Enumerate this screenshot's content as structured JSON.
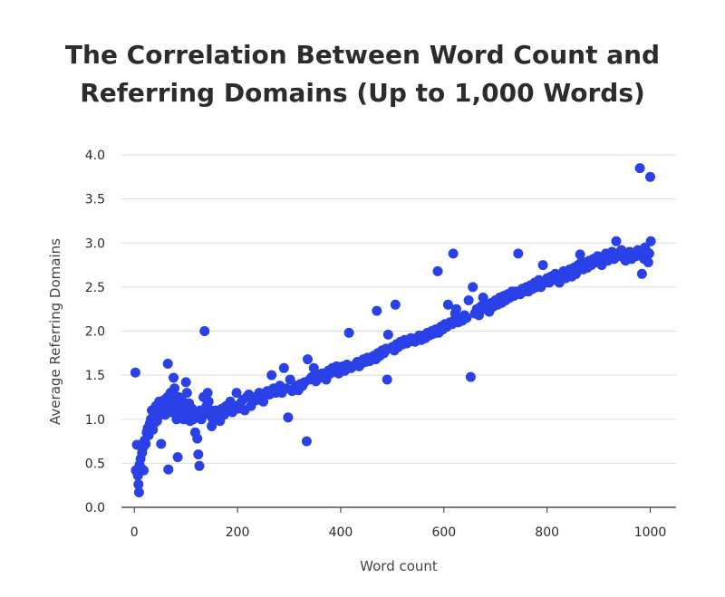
{
  "chart_data": {
    "type": "scatter",
    "title_lines": [
      "The Correlation Between Word Count and",
      "Referring Domains (Up to 1,000 Words)"
    ],
    "xlabel": "Word count",
    "ylabel": "Average Referring Domains",
    "xlim": [
      -25,
      1050
    ],
    "ylim": [
      0,
      4
    ],
    "x_ticks": [
      "0",
      "200",
      "400",
      "600",
      "800",
      "1000"
    ],
    "y_ticks": [
      "0.0",
      "0.5",
      "1.0",
      "1.5",
      "2.0",
      "2.5",
      "3.0",
      "3.5",
      "4.0"
    ],
    "grid": "horizontal",
    "point_color": "#2a41e8",
    "points": [
      [
        2,
        1.53
      ],
      [
        3,
        0.42
      ],
      [
        5,
        0.71
      ],
      [
        7,
        0.36
      ],
      [
        8,
        0.26
      ],
      [
        9,
        0.17
      ],
      [
        10,
        0.48
      ],
      [
        12,
        0.55
      ],
      [
        14,
        0.44
      ],
      [
        15,
        0.62
      ],
      [
        17,
        0.68
      ],
      [
        18,
        0.42
      ],
      [
        20,
        0.76
      ],
      [
        22,
        0.72
      ],
      [
        24,
        0.85
      ],
      [
        26,
        0.9
      ],
      [
        28,
        0.82
      ],
      [
        30,
        0.95
      ],
      [
        32,
        1.0
      ],
      [
        34,
        1.1
      ],
      [
        36,
        0.88
      ],
      [
        38,
        0.95
      ],
      [
        40,
        1.02
      ],
      [
        42,
        1.15
      ],
      [
        44,
        0.98
      ],
      [
        46,
        1.08
      ],
      [
        48,
        1.2
      ],
      [
        50,
        1.05
      ],
      [
        52,
        0.72
      ],
      [
        54,
        1.1
      ],
      [
        56,
        1.18
      ],
      [
        58,
        1.22
      ],
      [
        60,
        1.05
      ],
      [
        62,
        1.12
      ],
      [
        64,
        1.25
      ],
      [
        65,
        1.63
      ],
      [
        66,
        0.43
      ],
      [
        68,
        1.15
      ],
      [
        70,
        1.3
      ],
      [
        72,
        1.08
      ],
      [
        74,
        1.2
      ],
      [
        76,
        1.47
      ],
      [
        78,
        1.35
      ],
      [
        80,
        1.1
      ],
      [
        82,
        1.0
      ],
      [
        84,
        0.57
      ],
      [
        86,
        1.25
      ],
      [
        88,
        1.15
      ],
      [
        90,
        1.05
      ],
      [
        92,
        1.12
      ],
      [
        94,
        1.2
      ],
      [
        96,
        1.0
      ],
      [
        98,
        1.08
      ],
      [
        100,
        1.42
      ],
      [
        102,
        1.3
      ],
      [
        104,
        1.1
      ],
      [
        106,
        1.18
      ],
      [
        108,
        0.98
      ],
      [
        110,
        1.05
      ],
      [
        112,
        1.12
      ],
      [
        114,
        1.0
      ],
      [
        116,
        1.08
      ],
      [
        118,
        0.85
      ],
      [
        120,
        1.02
      ],
      [
        122,
        0.78
      ],
      [
        124,
        0.6
      ],
      [
        126,
        0.47
      ],
      [
        128,
        1.1
      ],
      [
        130,
        1.0
      ],
      [
        132,
        1.05
      ],
      [
        134,
        1.25
      ],
      [
        136,
        2.0
      ],
      [
        138,
        1.08
      ],
      [
        140,
        1.15
      ],
      [
        142,
        1.3
      ],
      [
        144,
        1.2
      ],
      [
        146,
        1.05
      ],
      [
        148,
        1.1
      ],
      [
        150,
        0.92
      ],
      [
        152,
        1.0
      ],
      [
        155,
        1.05
      ],
      [
        158,
        1.1
      ],
      [
        160,
        1.02
      ],
      [
        163,
        1.08
      ],
      [
        166,
        0.98
      ],
      [
        170,
        1.12
      ],
      [
        174,
        1.05
      ],
      [
        178,
        1.15
      ],
      [
        182,
        1.1
      ],
      [
        186,
        1.2
      ],
      [
        190,
        1.08
      ],
      [
        194,
        1.15
      ],
      [
        198,
        1.3
      ],
      [
        202,
        1.12
      ],
      [
        206,
        1.18
      ],
      [
        210,
        1.22
      ],
      [
        214,
        1.1
      ],
      [
        218,
        1.25
      ],
      [
        222,
        1.28
      ],
      [
        226,
        1.15
      ],
      [
        230,
        1.2
      ],
      [
        234,
        1.25
      ],
      [
        238,
        1.22
      ],
      [
        242,
        1.3
      ],
      [
        246,
        1.27
      ],
      [
        250,
        1.2
      ],
      [
        254,
        1.3
      ],
      [
        258,
        1.32
      ],
      [
        262,
        1.28
      ],
      [
        266,
        1.5
      ],
      [
        270,
        1.35
      ],
      [
        274,
        1.3
      ],
      [
        278,
        1.33
      ],
      [
        282,
        1.38
      ],
      [
        286,
        1.3
      ],
      [
        290,
        1.58
      ],
      [
        294,
        1.35
      ],
      [
        298,
        1.02
      ],
      [
        302,
        1.45
      ],
      [
        306,
        1.32
      ],
      [
        310,
        1.35
      ],
      [
        314,
        1.38
      ],
      [
        318,
        1.33
      ],
      [
        322,
        1.4
      ],
      [
        326,
        1.38
      ],
      [
        330,
        1.42
      ],
      [
        334,
        0.75
      ],
      [
        336,
        1.68
      ],
      [
        340,
        1.45
      ],
      [
        344,
        1.48
      ],
      [
        348,
        1.58
      ],
      [
        352,
        1.43
      ],
      [
        356,
        1.5
      ],
      [
        360,
        1.47
      ],
      [
        364,
        1.52
      ],
      [
        368,
        1.5
      ],
      [
        372,
        1.45
      ],
      [
        376,
        1.55
      ],
      [
        380,
        1.52
      ],
      [
        384,
        1.58
      ],
      [
        388,
        1.55
      ],
      [
        392,
        1.6
      ],
      [
        396,
        1.52
      ],
      [
        400,
        1.58
      ],
      [
        404,
        1.6
      ],
      [
        408,
        1.55
      ],
      [
        412,
        1.62
      ],
      [
        416,
        1.98
      ],
      [
        420,
        1.58
      ],
      [
        424,
        1.6
      ],
      [
        428,
        1.62
      ],
      [
        432,
        1.65
      ],
      [
        436,
        1.6
      ],
      [
        440,
        1.63
      ],
      [
        444,
        1.68
      ],
      [
        448,
        1.65
      ],
      [
        452,
        1.7
      ],
      [
        456,
        1.66
      ],
      [
        460,
        1.7
      ],
      [
        464,
        1.72
      ],
      [
        468,
        1.68
      ],
      [
        470,
        2.23
      ],
      [
        472,
        1.75
      ],
      [
        476,
        1.72
      ],
      [
        480,
        1.78
      ],
      [
        484,
        1.75
      ],
      [
        488,
        1.8
      ],
      [
        490,
        1.45
      ],
      [
        492,
        1.96
      ],
      [
        496,
        1.8
      ],
      [
        500,
        1.82
      ],
      [
        504,
        1.78
      ],
      [
        506,
        2.3
      ],
      [
        508,
        1.85
      ],
      [
        512,
        1.82
      ],
      [
        516,
        1.88
      ],
      [
        520,
        1.85
      ],
      [
        524,
        1.9
      ],
      [
        528,
        1.86
      ],
      [
        532,
        1.88
      ],
      [
        536,
        1.92
      ],
      [
        540,
        1.9
      ],
      [
        544,
        1.88
      ],
      [
        548,
        1.92
      ],
      [
        552,
        1.95
      ],
      [
        556,
        1.9
      ],
      [
        560,
        1.95
      ],
      [
        564,
        1.92
      ],
      [
        568,
        1.98
      ],
      [
        572,
        1.95
      ],
      [
        576,
        2.0
      ],
      [
        580,
        1.97
      ],
      [
        584,
        2.02
      ],
      [
        588,
        2.68
      ],
      [
        590,
        1.98
      ],
      [
        594,
        2.05
      ],
      [
        598,
        2.02
      ],
      [
        602,
        2.08
      ],
      [
        606,
        2.05
      ],
      [
        608,
        2.3
      ],
      [
        612,
        2.1
      ],
      [
        616,
        2.08
      ],
      [
        618,
        2.88
      ],
      [
        620,
        2.12
      ],
      [
        622,
        2.2
      ],
      [
        624,
        2.25
      ],
      [
        628,
        2.1
      ],
      [
        632,
        2.15
      ],
      [
        636,
        2.12
      ],
      [
        640,
        2.18
      ],
      [
        644,
        2.15
      ],
      [
        648,
        2.35
      ],
      [
        652,
        1.48
      ],
      [
        656,
        2.5
      ],
      [
        660,
        2.2
      ],
      [
        664,
        2.25
      ],
      [
        668,
        2.18
      ],
      [
        672,
        2.28
      ],
      [
        676,
        2.38
      ],
      [
        680,
        2.25
      ],
      [
        684,
        2.3
      ],
      [
        688,
        2.22
      ],
      [
        692,
        2.32
      ],
      [
        696,
        2.28
      ],
      [
        700,
        2.35
      ],
      [
        704,
        2.3
      ],
      [
        708,
        2.38
      ],
      [
        712,
        2.32
      ],
      [
        716,
        2.4
      ],
      [
        720,
        2.35
      ],
      [
        724,
        2.42
      ],
      [
        728,
        2.38
      ],
      [
        732,
        2.45
      ],
      [
        736,
        2.4
      ],
      [
        740,
        2.45
      ],
      [
        744,
        2.88
      ],
      [
        748,
        2.42
      ],
      [
        752,
        2.48
      ],
      [
        756,
        2.45
      ],
      [
        760,
        2.5
      ],
      [
        764,
        2.45
      ],
      [
        768,
        2.52
      ],
      [
        772,
        2.48
      ],
      [
        776,
        2.55
      ],
      [
        780,
        2.5
      ],
      [
        784,
        2.58
      ],
      [
        788,
        2.5
      ],
      [
        792,
        2.75
      ],
      [
        796,
        2.55
      ],
      [
        800,
        2.6
      ],
      [
        804,
        2.55
      ],
      [
        808,
        2.62
      ],
      [
        812,
        2.58
      ],
      [
        816,
        2.65
      ],
      [
        820,
        2.6
      ],
      [
        824,
        2.55
      ],
      [
        828,
        2.62
      ],
      [
        832,
        2.68
      ],
      [
        836,
        2.6
      ],
      [
        840,
        2.65
      ],
      [
        844,
        2.7
      ],
      [
        848,
        2.62
      ],
      [
        852,
        2.72
      ],
      [
        856,
        2.65
      ],
      [
        860,
        2.75
      ],
      [
        864,
        2.87
      ],
      [
        866,
        2.78
      ],
      [
        870,
        2.7
      ],
      [
        874,
        2.78
      ],
      [
        878,
        2.72
      ],
      [
        882,
        2.8
      ],
      [
        886,
        2.75
      ],
      [
        890,
        2.82
      ],
      [
        894,
        2.78
      ],
      [
        898,
        2.85
      ],
      [
        902,
        2.8
      ],
      [
        906,
        2.75
      ],
      [
        910,
        2.82
      ],
      [
        914,
        2.88
      ],
      [
        918,
        2.8
      ],
      [
        922,
        2.85
      ],
      [
        926,
        2.9
      ],
      [
        930,
        2.82
      ],
      [
        934,
        3.02
      ],
      [
        936,
        2.88
      ],
      [
        940,
        2.85
      ],
      [
        944,
        2.92
      ],
      [
        948,
        2.88
      ],
      [
        952,
        2.8
      ],
      [
        956,
        2.85
      ],
      [
        960,
        2.9
      ],
      [
        964,
        2.82
      ],
      [
        968,
        2.88
      ],
      [
        972,
        2.85
      ],
      [
        976,
        2.92
      ],
      [
        980,
        3.85
      ],
      [
        982,
        2.88
      ],
      [
        984,
        2.65
      ],
      [
        986,
        2.9
      ],
      [
        988,
        2.82
      ],
      [
        990,
        2.95
      ],
      [
        992,
        2.85
      ],
      [
        994,
        2.9
      ],
      [
        996,
        2.78
      ],
      [
        998,
        2.88
      ],
      [
        1000,
        3.75
      ],
      [
        1001,
        3.02
      ]
    ]
  }
}
